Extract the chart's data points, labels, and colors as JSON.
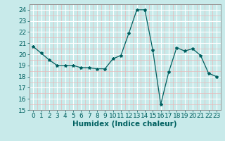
{
  "x": [
    0,
    1,
    2,
    3,
    4,
    5,
    6,
    7,
    8,
    9,
    10,
    11,
    12,
    13,
    14,
    15,
    16,
    17,
    18,
    19,
    20,
    21,
    22,
    23
  ],
  "y": [
    20.7,
    20.1,
    19.5,
    19.0,
    19.0,
    19.0,
    18.8,
    18.8,
    18.7,
    18.7,
    19.6,
    19.9,
    21.9,
    24.0,
    24.0,
    20.4,
    15.5,
    18.4,
    20.6,
    20.3,
    20.5,
    19.9,
    18.3,
    18.0
  ],
  "line_color": "#006060",
  "marker": "*",
  "marker_size": 3,
  "bg_color": "#c8eaea",
  "grid_major_color": "#ffffff",
  "grid_minor_color": "#e8b8b8",
  "xlabel": "Humidex (Indice chaleur)",
  "ylim": [
    15,
    24.5
  ],
  "xlim": [
    -0.5,
    23.5
  ],
  "yticks": [
    15,
    16,
    17,
    18,
    19,
    20,
    21,
    22,
    23,
    24
  ],
  "xticks": [
    0,
    1,
    2,
    3,
    4,
    5,
    6,
    7,
    8,
    9,
    10,
    11,
    12,
    13,
    14,
    15,
    16,
    17,
    18,
    19,
    20,
    21,
    22,
    23
  ],
  "tick_fontsize": 6.5,
  "xlabel_fontsize": 7.5,
  "linewidth": 0.9
}
